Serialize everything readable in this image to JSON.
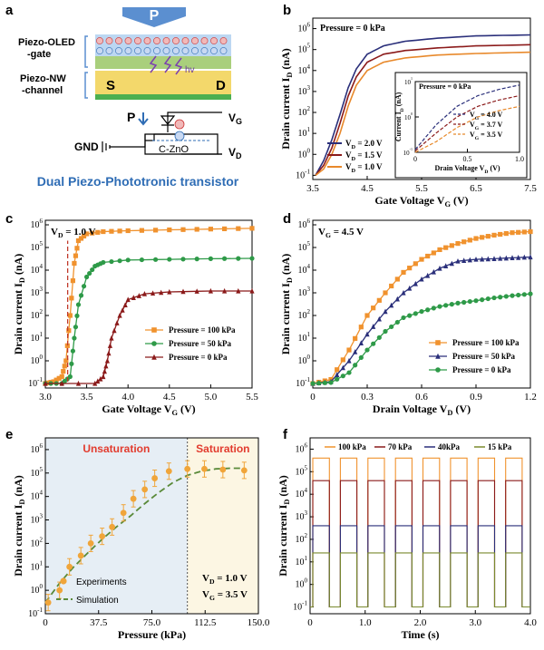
{
  "panels": {
    "a": {
      "letter": "a",
      "arrow_label": "P",
      "oled_label_line1": "Piezo-OLED",
      "oled_label_line2": "-gate",
      "nw_label_line1": "Piezo-NW",
      "nw_label_line2": "-channel",
      "source": "S",
      "drain": "D",
      "light": "hv",
      "circuit_p": "P",
      "vg": "VG",
      "vd": "VD",
      "gnd": "GND",
      "czno": "C-ZnO",
      "caption": "Dual Piezo-Phototronic transistor",
      "caption_color": "#2f6db5"
    },
    "b": {
      "letter": "b"
    },
    "c": {
      "letter": "c"
    },
    "d": {
      "letter": "d"
    },
    "e": {
      "letter": "e"
    },
    "f": {
      "letter": "f"
    }
  },
  "chart_data": [
    {
      "id": "b",
      "type": "line",
      "annotation": "Pressure = 0 kPa",
      "xlabel": "Gate Voltage V_G (V)",
      "ylabel": "Drain current I_D (nA)",
      "xlim": [
        3.5,
        7.5
      ],
      "ylim_log10": [
        -1.2,
        6.5
      ],
      "xticks": [
        "3.5",
        "4.5",
        "5.5",
        "6.5",
        "7.5"
      ],
      "yticks_exp": [
        "-1",
        "0",
        "1",
        "2",
        "3",
        "4",
        "5",
        "6"
      ],
      "legend_position": "bottom-left",
      "series": [
        {
          "name": "V_D = 2.0 V",
          "color": "#2a2f7a",
          "x": [
            3.55,
            3.7,
            3.85,
            4.0,
            4.15,
            4.3,
            4.5,
            4.8,
            5.2,
            5.8,
            6.5,
            7.5
          ],
          "y": [
            0.1,
            0.5,
            5,
            80,
            1500,
            12000,
            60000,
            150000,
            250000,
            350000,
            450000,
            500000
          ]
        },
        {
          "name": "V_D = 1.5 V",
          "color": "#8b1a1a",
          "x": [
            3.55,
            3.7,
            3.85,
            4.0,
            4.15,
            4.3,
            4.5,
            4.8,
            5.2,
            5.8,
            6.5,
            7.5
          ],
          "y": [
            0.1,
            0.3,
            2,
            30,
            600,
            5000,
            25000,
            60000,
            90000,
            120000,
            150000,
            170000
          ]
        },
        {
          "name": "V_D = 1.0 V",
          "color": "#e8892b",
          "x": [
            3.55,
            3.7,
            3.85,
            4.0,
            4.15,
            4.3,
            4.5,
            4.8,
            5.2,
            5.8,
            6.5,
            7.5
          ],
          "y": [
            0.1,
            0.2,
            1,
            10,
            200,
            2000,
            10000,
            25000,
            40000,
            55000,
            65000,
            75000
          ]
        }
      ],
      "inset": {
        "annotation": "Pressure = 0 kPa",
        "xlabel": "Drain Voltage V_D (V)",
        "ylabel": "Current I_D (nA)",
        "xlim": [
          0,
          1.0
        ],
        "ylim_log10": [
          -1,
          1
        ],
        "xticks": [
          "0",
          "0.5",
          "1.0"
        ],
        "yticks_exp": [
          "-1",
          "0",
          "1"
        ],
        "series": [
          {
            "name": "V_G = 4.0 V",
            "color": "#2a2f7a",
            "x": [
              0,
              0.2,
              0.4,
              0.6,
              0.8,
              1.0
            ],
            "y": [
              0.12,
              0.6,
              2,
              4,
              6,
              8
            ]
          },
          {
            "name": "V_G = 3.7 V",
            "color": "#8b1a1a",
            "x": [
              0,
              0.2,
              0.4,
              0.6,
              0.8,
              1.0
            ],
            "y": [
              0.11,
              0.35,
              1,
              2,
              3,
              4
            ]
          },
          {
            "name": "V_G = 3.5 V",
            "color": "#e8892b",
            "x": [
              0,
              0.2,
              0.4,
              0.6,
              0.8,
              1.0
            ],
            "y": [
              0.1,
              0.2,
              0.5,
              1,
              1.5,
              2
            ]
          }
        ]
      }
    },
    {
      "id": "c",
      "type": "line",
      "annotation": "V_D = 1.0 V",
      "xlabel": "Gate Voltage V_G (V)",
      "ylabel": "Drain current I_D (nA)",
      "xlim": [
        3.0,
        5.5
      ],
      "ylim_log10": [
        -1.2,
        6.2
      ],
      "xticks": [
        "3.0",
        "3.5",
        "4.0",
        "4.5",
        "5.0",
        "5.5"
      ],
      "yticks_exp": [
        "-1",
        "0",
        "1",
        "2",
        "3",
        "4",
        "5",
        "6"
      ],
      "legend_position": "center-right",
      "series": [
        {
          "name": "Pressure = 100 kPa",
          "color": "#f0922e",
          "marker": "square",
          "x": [
            3.0,
            3.1,
            3.2,
            3.25,
            3.3,
            3.35,
            3.4,
            3.5,
            3.7,
            4.0,
            4.5,
            5.0,
            5.5
          ],
          "y": [
            0.1,
            0.12,
            0.2,
            1,
            100,
            20000,
            200000,
            400000,
            500000,
            550000,
            600000,
            650000,
            700000
          ]
        },
        {
          "name": "Pressure = 50 kPa",
          "color": "#2e9a48",
          "marker": "circle",
          "x": [
            3.0,
            3.2,
            3.3,
            3.35,
            3.4,
            3.5,
            3.6,
            3.7,
            4.0,
            4.5,
            5.0,
            5.5
          ],
          "y": [
            0.1,
            0.1,
            0.2,
            10,
            300,
            5000,
            15000,
            22000,
            28000,
            30000,
            32000,
            33000
          ]
        },
        {
          "name": "Pressure = 0 kPa",
          "color": "#8b1a1a",
          "marker": "triangle",
          "x": [
            3.0,
            3.6,
            3.7,
            3.75,
            3.8,
            3.9,
            4.0,
            4.2,
            4.5,
            5.0,
            5.5
          ],
          "y": [
            0.1,
            0.1,
            0.2,
            1,
            10,
            100,
            500,
            900,
            1100,
            1200,
            1200
          ]
        }
      ]
    },
    {
      "id": "d",
      "type": "line",
      "annotation": "V_G = 4.5 V",
      "xlabel": "Drain Voltage V_D (V)",
      "ylabel": "Drain current I_D (nA)",
      "xlim": [
        0,
        1.2
      ],
      "ylim_log10": [
        -1.2,
        6.2
      ],
      "xticks": [
        "0",
        "0.3",
        "0.6",
        "0.9",
        "1.2"
      ],
      "yticks_exp": [
        "-1",
        "0",
        "1",
        "2",
        "3",
        "4",
        "5",
        "6"
      ],
      "legend_position": "bottom-right",
      "series": [
        {
          "name": "Pressure = 100 kPa",
          "color": "#f0922e",
          "marker": "square",
          "x": [
            0,
            0.1,
            0.2,
            0.3,
            0.4,
            0.5,
            0.6,
            0.7,
            0.8,
            0.9,
            1.0,
            1.1,
            1.2
          ],
          "y": [
            0.1,
            0.15,
            3,
            100,
            1000,
            8000,
            30000,
            80000,
            150000,
            250000,
            350000,
            450000,
            500000
          ]
        },
        {
          "name": "Pressure = 50 kPa",
          "color": "#2a2f7a",
          "marker": "triangle",
          "x": [
            0,
            0.1,
            0.2,
            0.3,
            0.4,
            0.5,
            0.6,
            0.7,
            0.8,
            0.9,
            1.0,
            1.1,
            1.2
          ],
          "y": [
            0.1,
            0.12,
            1,
            15,
            150,
            1000,
            4000,
            12000,
            25000,
            30000,
            32000,
            35000,
            38000
          ]
        },
        {
          "name": "Pressure = 0 kPa",
          "color": "#2e9a48",
          "marker": "circle",
          "x": [
            0,
            0.1,
            0.2,
            0.3,
            0.4,
            0.5,
            0.6,
            0.7,
            0.8,
            0.9,
            1.0,
            1.1,
            1.2
          ],
          "y": [
            0.1,
            0.11,
            0.3,
            3,
            20,
            80,
            150,
            250,
            350,
            450,
            600,
            750,
            900
          ]
        }
      ]
    },
    {
      "id": "e",
      "type": "scatter",
      "xlabel": "Pressure (kPa)",
      "ylabel": "Drain current I_D (nA)",
      "xlim": [
        0,
        150
      ],
      "ylim_log10": [
        -1,
        6.5
      ],
      "xticks": [
        "0",
        "37.5",
        "75.0",
        "112.5",
        "150.0"
      ],
      "yticks_exp": [
        "-1",
        "0",
        "1",
        "2",
        "3",
        "4",
        "5",
        "6"
      ],
      "regions": [
        {
          "label": "Unsaturation",
          "x_range": [
            0,
            100
          ],
          "color": "#e6eef5"
        },
        {
          "label": "Saturation",
          "x_range": [
            100,
            150
          ],
          "color": "#fcf6e3"
        }
      ],
      "region_label_color": "#e23b2e",
      "legend_position": "bottom-left",
      "conditions": [
        "V_D = 1.0 V",
        "V_G = 3.5 V"
      ],
      "series": [
        {
          "name": "Experiments",
          "color": "#f0a53a",
          "marker": "circle",
          "x": [
            2,
            10,
            17,
            25,
            32,
            40,
            47,
            55,
            62,
            70,
            77,
            87,
            100,
            112,
            125,
            140
          ],
          "y": [
            0.3,
            1,
            10,
            30,
            100,
            200,
            500,
            2000,
            8000,
            20000,
            60000,
            120000,
            150000,
            150000,
            140000,
            130000
          ],
          "err_log10": 0.35
        },
        {
          "name": "Simulation",
          "color": "#5a8a3a",
          "style": "dashed",
          "x": [
            0,
            10,
            20,
            30,
            40,
            50,
            60,
            70,
            80,
            90,
            100,
            110,
            120,
            130,
            140
          ],
          "y": [
            0.3,
            2,
            10,
            40,
            150,
            500,
            1500,
            5000,
            15000,
            40000,
            80000,
            120000,
            150000,
            160000,
            160000
          ]
        }
      ]
    },
    {
      "id": "f",
      "type": "line",
      "xlabel": "Time (s)",
      "ylabel": "Drain current I_D (nA)",
      "xlim": [
        0,
        4.0
      ],
      "ylim_log10": [
        -1.3,
        6.5
      ],
      "xticks": [
        "0",
        "1.0",
        "2.0",
        "3.0",
        "4.0"
      ],
      "yticks_exp": [
        "-1",
        "0",
        "1",
        "2",
        "3",
        "4",
        "5",
        "6"
      ],
      "legend_position": "top",
      "pulses_on_s": [
        [
          0.05,
          0.35
        ],
        [
          0.55,
          0.85
        ],
        [
          1.05,
          1.35
        ],
        [
          1.55,
          1.85
        ],
        [
          2.05,
          2.35
        ],
        [
          2.55,
          2.85
        ],
        [
          3.05,
          3.35
        ],
        [
          3.55,
          3.85
        ]
      ],
      "baseline": 0.1,
      "series": [
        {
          "name": "100 kPa",
          "color": "#f0922e",
          "on_level": 400000
        },
        {
          "name": "70 kPa",
          "color": "#8b1a1a",
          "on_level": 40000
        },
        {
          "name": "40kPa",
          "color": "#2a2f7a",
          "on_level": 400
        },
        {
          "name": "15 kPa",
          "color": "#7a8a2e",
          "on_level": 25
        }
      ]
    }
  ]
}
